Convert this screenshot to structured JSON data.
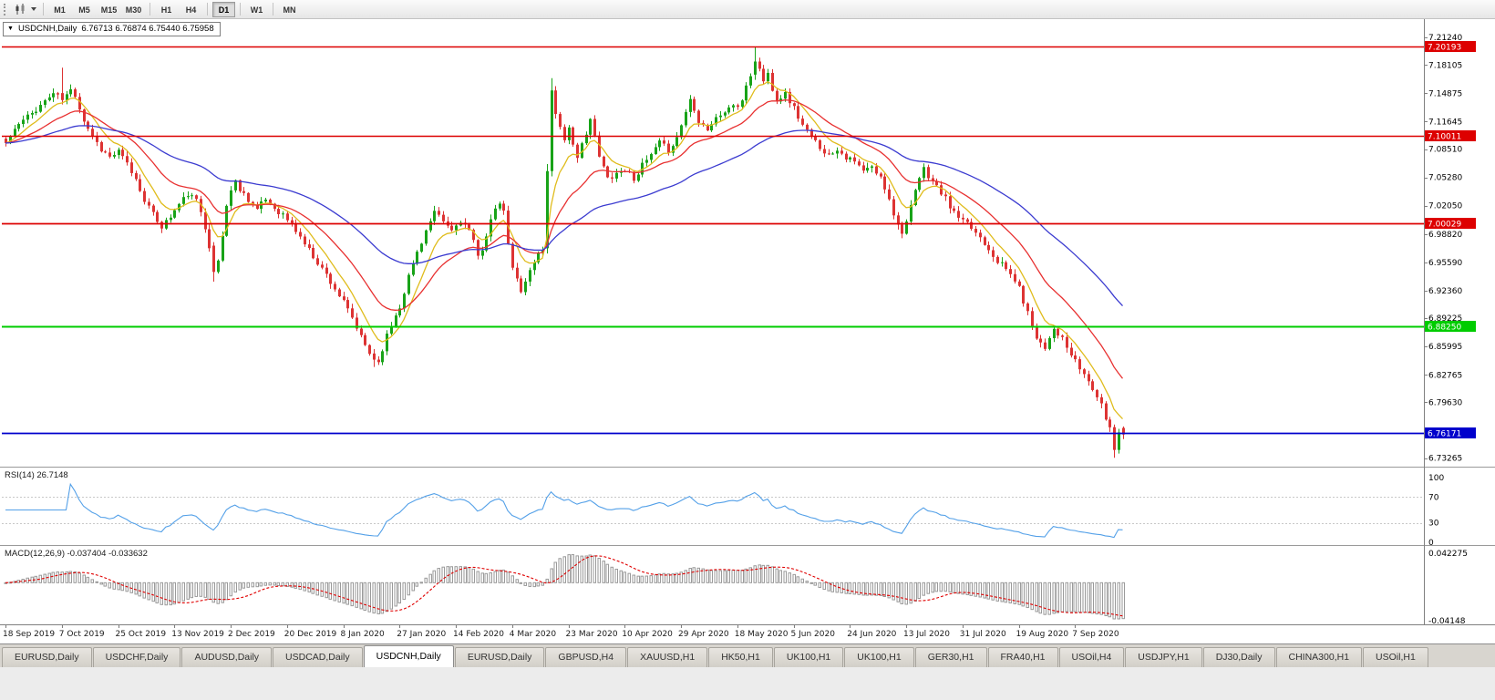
{
  "toolbar": {
    "timeframes": [
      "M1",
      "M5",
      "M15",
      "M30",
      "H1",
      "H4",
      "D1",
      "W1",
      "MN"
    ],
    "active_timeframe": "D1",
    "separators_after": [
      "M30",
      "H4",
      "D1",
      "W1"
    ]
  },
  "chart": {
    "title": "USDCNH,Daily",
    "ohlc": "6.76713 6.76874 6.75440 6.75958",
    "collapse_icon": "▼"
  },
  "price_axis": {
    "labels": [
      "7.21240",
      "7.18105",
      "7.14875",
      "7.11645",
      "7.08510",
      "7.05280",
      "7.02050",
      "6.98820",
      "6.95590",
      "6.92360",
      "6.89225",
      "6.85995",
      "6.82765",
      "6.79630",
      "6.76400",
      "6.73265"
    ]
  },
  "hlines": [
    {
      "price": 7.20193,
      "label": "7.20193",
      "color": "#dd0000",
      "width": 1.4
    },
    {
      "price": 7.10011,
      "label": "7.10011",
      "color": "#dd0000",
      "width": 1.6
    },
    {
      "price": 7.00029,
      "label": "7.00029",
      "color": "#dd0000",
      "width": 1.8
    },
    {
      "price": 6.8825,
      "label": "6.88250",
      "color": "#00cc00",
      "width": 2
    },
    {
      "price": 6.76171,
      "label": "6.76171",
      "color": "#0000cc",
      "width": 1.8
    }
  ],
  "rsi_panel": {
    "label": "RSI(14) 26.7148",
    "last_value": 26.7148,
    "line_color": "#53a0e8",
    "levels": [
      {
        "value": 100,
        "label": "100"
      },
      {
        "value": 70,
        "label": "70"
      },
      {
        "value": 30,
        "label": "30"
      },
      {
        "value": 0,
        "label": "0"
      }
    ]
  },
  "macd_panel": {
    "label": "MACD(12,26,9) -0.037404 -0.033632",
    "main_value": -0.037404,
    "signal_value": -0.033632,
    "axis_top_label": "0.042275",
    "axis_bottom_label": "-0.04148",
    "histogram_color": "#9a9a9a",
    "signal_color": "#e00000"
  },
  "date_axis": {
    "bars_per_label": 13,
    "labels": [
      "18 Sep 2019",
      "7 Oct 2019",
      "25 Oct 2019",
      "13 Nov 2019",
      "2 Dec 2019",
      "20 Dec 2019",
      "8 Jan 2020",
      "27 Jan 2020",
      "14 Feb 2020",
      "4 Mar 2020",
      "23 Mar 2020",
      "10 Apr 2020",
      "29 Apr 2020",
      "18 May 2020",
      "5 Jun 2020",
      "24 Jun 2020",
      "13 Jul 2020",
      "31 Jul 2020",
      "19 Aug 2020",
      "7 Sep 2020"
    ]
  },
  "chart_data": {
    "type": "candlestick",
    "symbol": "USDCNH",
    "timeframe": "Daily",
    "price_range": [
      6.725,
      7.225
    ],
    "candle_count": 259,
    "seed": 11,
    "noise": 0.007,
    "up_color": "#18a318",
    "down_color": "#dd3333",
    "ma_lines": [
      {
        "type": "ema",
        "period": 8,
        "color": "#e0bc1c"
      },
      {
        "type": "ema",
        "period": 21,
        "color": "#e83030"
      },
      {
        "type": "ema",
        "period": 55,
        "color": "#3b3bd0"
      }
    ],
    "anchors": [
      [
        0,
        7.092
      ],
      [
        2,
        7.108
      ],
      [
        4,
        7.118
      ],
      [
        6,
        7.126
      ],
      [
        9,
        7.14
      ],
      [
        11,
        7.149
      ],
      [
        13,
        7.141
      ],
      [
        15,
        7.152
      ],
      [
        16,
        7.147
      ],
      [
        18,
        7.118
      ],
      [
        20,
        7.1
      ],
      [
        22,
        7.085
      ],
      [
        24,
        7.076
      ],
      [
        26,
        7.082
      ],
      [
        28,
        7.068
      ],
      [
        30,
        7.05
      ],
      [
        32,
        7.028
      ],
      [
        34,
        7.01
      ],
      [
        36,
        6.997
      ],
      [
        38,
        7.008
      ],
      [
        40,
        7.022
      ],
      [
        42,
        7.034
      ],
      [
        44,
        7.026
      ],
      [
        45,
        7.014
      ],
      [
        46,
        6.997
      ],
      [
        47,
        6.975
      ],
      [
        48,
        6.945
      ],
      [
        49,
        6.958
      ],
      [
        50,
        6.986
      ],
      [
        51,
        7.022
      ],
      [
        52,
        7.038
      ],
      [
        53,
        7.048
      ],
      [
        54,
        7.04
      ],
      [
        56,
        7.028
      ],
      [
        58,
        7.016
      ],
      [
        60,
        7.028
      ],
      [
        62,
        7.018
      ],
      [
        64,
        7.01
      ],
      [
        66,
        6.999
      ],
      [
        68,
        6.985
      ],
      [
        70,
        6.97
      ],
      [
        72,
        6.956
      ],
      [
        74,
        6.942
      ],
      [
        76,
        6.926
      ],
      [
        78,
        6.91
      ],
      [
        80,
        6.892
      ],
      [
        82,
        6.87
      ],
      [
        84,
        6.852
      ],
      [
        85,
        6.845
      ],
      [
        86,
        6.842
      ],
      [
        87,
        6.858
      ],
      [
        88,
        6.872
      ],
      [
        90,
        6.896
      ],
      [
        91,
        6.906
      ],
      [
        93,
        6.94
      ],
      [
        95,
        6.968
      ],
      [
        97,
        6.992
      ],
      [
        99,
        7.012
      ],
      [
        101,
        7.002
      ],
      [
        103,
        6.992
      ],
      [
        105,
        7.004
      ],
      [
        107,
        6.992
      ],
      [
        108,
        6.978
      ],
      [
        109,
        6.962
      ],
      [
        110,
        6.972
      ],
      [
        112,
        7.004
      ],
      [
        114,
        7.024
      ],
      [
        115,
        7.012
      ],
      [
        116,
        6.978
      ],
      [
        117,
        6.948
      ],
      [
        119,
        6.925
      ],
      [
        121,
        6.946
      ],
      [
        123,
        6.966
      ],
      [
        124,
        6.972
      ],
      [
        125,
        7.06
      ],
      [
        126,
        7.152
      ],
      [
        127,
        7.128
      ],
      [
        128,
        7.11
      ],
      [
        129,
        7.096
      ],
      [
        130,
        7.112
      ],
      [
        131,
        7.088
      ],
      [
        132,
        7.072
      ],
      [
        133,
        7.09
      ],
      [
        135,
        7.12
      ],
      [
        136,
        7.098
      ],
      [
        137,
        7.076
      ],
      [
        139,
        7.052
      ],
      [
        141,
        7.058
      ],
      [
        143,
        7.062
      ],
      [
        145,
        7.052
      ],
      [
        147,
        7.066
      ],
      [
        149,
        7.078
      ],
      [
        151,
        7.092
      ],
      [
        153,
        7.084
      ],
      [
        155,
        7.098
      ],
      [
        157,
        7.128
      ],
      [
        158,
        7.142
      ],
      [
        159,
        7.132
      ],
      [
        160,
        7.118
      ],
      [
        162,
        7.108
      ],
      [
        164,
        7.12
      ],
      [
        166,
        7.128
      ],
      [
        168,
        7.136
      ],
      [
        169,
        7.13
      ],
      [
        170,
        7.142
      ],
      [
        171,
        7.158
      ],
      [
        172,
        7.17
      ],
      [
        173,
        7.185
      ],
      [
        174,
        7.178
      ],
      [
        175,
        7.162
      ],
      [
        176,
        7.171
      ],
      [
        177,
        7.155
      ],
      [
        178,
        7.142
      ],
      [
        180,
        7.148
      ],
      [
        182,
        7.132
      ],
      [
        184,
        7.112
      ],
      [
        186,
        7.098
      ],
      [
        188,
        7.088
      ],
      [
        190,
        7.078
      ],
      [
        192,
        7.086
      ],
      [
        194,
        7.076
      ],
      [
        196,
        7.07
      ],
      [
        198,
        7.06
      ],
      [
        200,
        7.064
      ],
      [
        202,
        7.052
      ],
      [
        204,
        7.03
      ],
      [
        205,
        7.012
      ],
      [
        206,
        6.998
      ],
      [
        207,
        6.992
      ],
      [
        208,
        7.002
      ],
      [
        209,
        7.018
      ],
      [
        210,
        7.036
      ],
      [
        211,
        7.052
      ],
      [
        212,
        7.062
      ],
      [
        213,
        7.055
      ],
      [
        215,
        7.042
      ],
      [
        217,
        7.028
      ],
      [
        219,
        7.012
      ],
      [
        221,
        7.002
      ],
      [
        223,
        6.995
      ],
      [
        225,
        6.985
      ],
      [
        227,
        6.972
      ],
      [
        229,
        6.958
      ],
      [
        231,
        6.948
      ],
      [
        233,
        6.936
      ],
      [
        234,
        6.926
      ],
      [
        235,
        6.912
      ],
      [
        236,
        6.898
      ],
      [
        237,
        6.885
      ],
      [
        238,
        6.872
      ],
      [
        239,
        6.865
      ],
      [
        240,
        6.858
      ],
      [
        241,
        6.872
      ],
      [
        242,
        6.881
      ],
      [
        243,
        6.875
      ],
      [
        244,
        6.868
      ],
      [
        245,
        6.858
      ],
      [
        246,
        6.85
      ],
      [
        247,
        6.842
      ],
      [
        249,
        6.828
      ],
      [
        251,
        6.812
      ],
      [
        252,
        6.802
      ],
      [
        253,
        6.792
      ],
      [
        254,
        6.778
      ],
      [
        255,
        6.768
      ],
      [
        256,
        6.742
      ],
      [
        257,
        6.762
      ],
      [
        258,
        6.75958
      ]
    ],
    "overrides": {
      "13": [
        7.149,
        7.178,
        7.136,
        7.141
      ],
      "48": [
        6.975,
        6.979,
        6.934,
        6.945
      ],
      "85": [
        6.852,
        6.857,
        6.8366,
        6.845
      ],
      "125": [
        6.972,
        7.068,
        6.966,
        7.06
      ],
      "126": [
        7.06,
        7.166,
        7.054,
        7.152
      ],
      "173": [
        7.17,
        7.2019,
        7.164,
        7.185
      ],
      "256": [
        6.768,
        6.771,
        6.733,
        6.742
      ],
      "257": [
        6.742,
        6.766,
        6.7378,
        6.762
      ],
      "258": [
        6.76713,
        6.76874,
        6.7544,
        6.75958
      ]
    }
  },
  "tabs": {
    "active_index": 4,
    "items": [
      "EURUSD,Daily",
      "USDCHF,Daily",
      "AUDUSD,Daily",
      "USDCAD,Daily",
      "USDCNH,Daily",
      "EURUSD,Daily",
      "GBPUSD,H4",
      "XAUUSD,H1",
      "HK50,H1",
      "UK100,H1",
      "UK100,H1",
      "GER30,H1",
      "FRA40,H1",
      "USOil,H4",
      "USDJPY,H1",
      "DJ30,Daily",
      "CHINA300,H1",
      "USOil,H1"
    ]
  }
}
